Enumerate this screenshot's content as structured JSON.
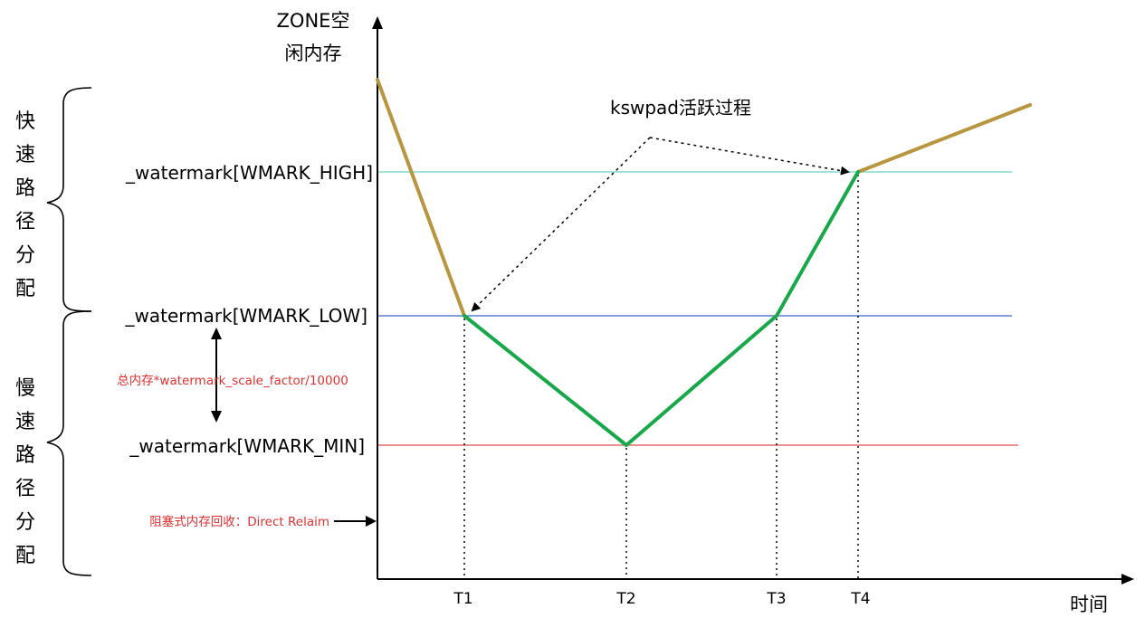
{
  "y_axis": {
    "title_line1": "ZONE空",
    "title_line2": "闲内存"
  },
  "x_axis": {
    "title": "时间",
    "ticks": [
      "T1",
      "T2",
      "T3",
      "T4"
    ]
  },
  "watermarks": {
    "high": "_watermark[WMARK_HIGH]",
    "low": "_watermark[WMARK_LOW]",
    "min": "_watermark[WMARK_MIN]"
  },
  "fast_path": {
    "chars": [
      "快",
      "速",
      "路",
      "径",
      "分",
      "配"
    ]
  },
  "slow_path": {
    "chars": [
      "慢",
      "速",
      "路",
      "径",
      "分",
      "配"
    ]
  },
  "gap_label": "总内存*watermark_scale_factor/10000",
  "direct_reclaim_label": "阻塞式内存回收：Direct Relaim",
  "kswapd_label": "kswpad活跃过程",
  "colors": {
    "high_line": "#7fdcd0",
    "low_line": "#5b7fd6",
    "min_line": "#e06a6a",
    "normal_curve": "#b8953f",
    "kswapd_curve": "#17a84a",
    "annotation_red": "#e03030"
  }
}
